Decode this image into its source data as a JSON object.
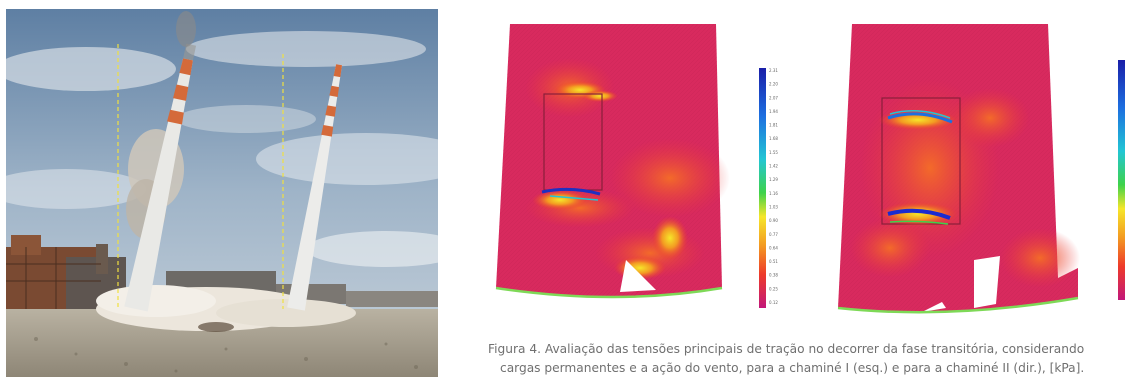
{
  "figure": {
    "caption_line1": "Figura 4. Avaliação das tensões principais de tração no decorrer da fase transitória, considerando",
    "caption_line2": "cargas permanentes e a ação do vento, para a chaminé I (esq.) e para a chaminé II (dir.), [kPa].",
    "colorbar_labels": [
      "2.31",
      "2.20",
      "2.07",
      "1.94",
      "1.81",
      "1.68",
      "1.55",
      "1.42",
      "1.29",
      "1.16",
      "1.03",
      "0.90",
      "0.77",
      "0.64",
      "0.51",
      "0.38",
      "0.25",
      "0.12"
    ],
    "colors": {
      "fem_background": "#d82a5e",
      "stress_high": "#1a2bd0",
      "stress_mid": "#f6e62a",
      "stress_low": "#f2532a",
      "base_ring": "#7ed957"
    }
  }
}
